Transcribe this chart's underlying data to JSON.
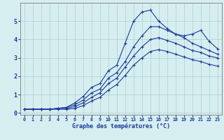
{
  "xlabel": "Graphe des températures (°C)",
  "background_color": "#d6eef0",
  "grid_color": "#aecdd0",
  "line_color": "#1a3a9c",
  "x_values": [
    0,
    1,
    2,
    3,
    4,
    5,
    6,
    7,
    8,
    9,
    10,
    11,
    12,
    13,
    14,
    15,
    16,
    17,
    18,
    19,
    20,
    21,
    22,
    23
  ],
  "series1": [
    0.2,
    0.2,
    0.2,
    0.2,
    0.25,
    0.3,
    0.55,
    0.9,
    1.4,
    1.6,
    2.3,
    2.6,
    3.8,
    5.0,
    5.5,
    5.6,
    5.0,
    4.6,
    4.3,
    4.2,
    4.3,
    4.5,
    3.9,
    3.5
  ],
  "series2": [
    0.2,
    0.2,
    0.2,
    0.2,
    0.25,
    0.3,
    0.45,
    0.7,
    1.1,
    1.3,
    1.9,
    2.2,
    2.8,
    3.6,
    4.2,
    4.7,
    4.7,
    4.5,
    4.3,
    4.1,
    3.8,
    3.6,
    3.4,
    3.2
  ],
  "series3": [
    0.2,
    0.2,
    0.2,
    0.2,
    0.25,
    0.25,
    0.35,
    0.55,
    0.85,
    1.1,
    1.6,
    1.9,
    2.5,
    3.1,
    3.6,
    4.0,
    4.1,
    3.95,
    3.8,
    3.6,
    3.4,
    3.3,
    3.1,
    3.0
  ],
  "series4": [
    0.2,
    0.2,
    0.2,
    0.2,
    0.2,
    0.2,
    0.25,
    0.4,
    0.65,
    0.85,
    1.25,
    1.55,
    2.05,
    2.6,
    3.0,
    3.35,
    3.45,
    3.35,
    3.2,
    3.05,
    2.9,
    2.8,
    2.65,
    2.55
  ],
  "ylim": [
    -0.1,
    6.0
  ],
  "yticks": [
    0,
    1,
    2,
    3,
    4,
    5
  ],
  "xlim": [
    -0.5,
    23.5
  ],
  "xticks": [
    0,
    1,
    2,
    3,
    4,
    5,
    6,
    7,
    8,
    9,
    10,
    11,
    12,
    13,
    14,
    15,
    16,
    17,
    18,
    19,
    20,
    21,
    22,
    23
  ]
}
